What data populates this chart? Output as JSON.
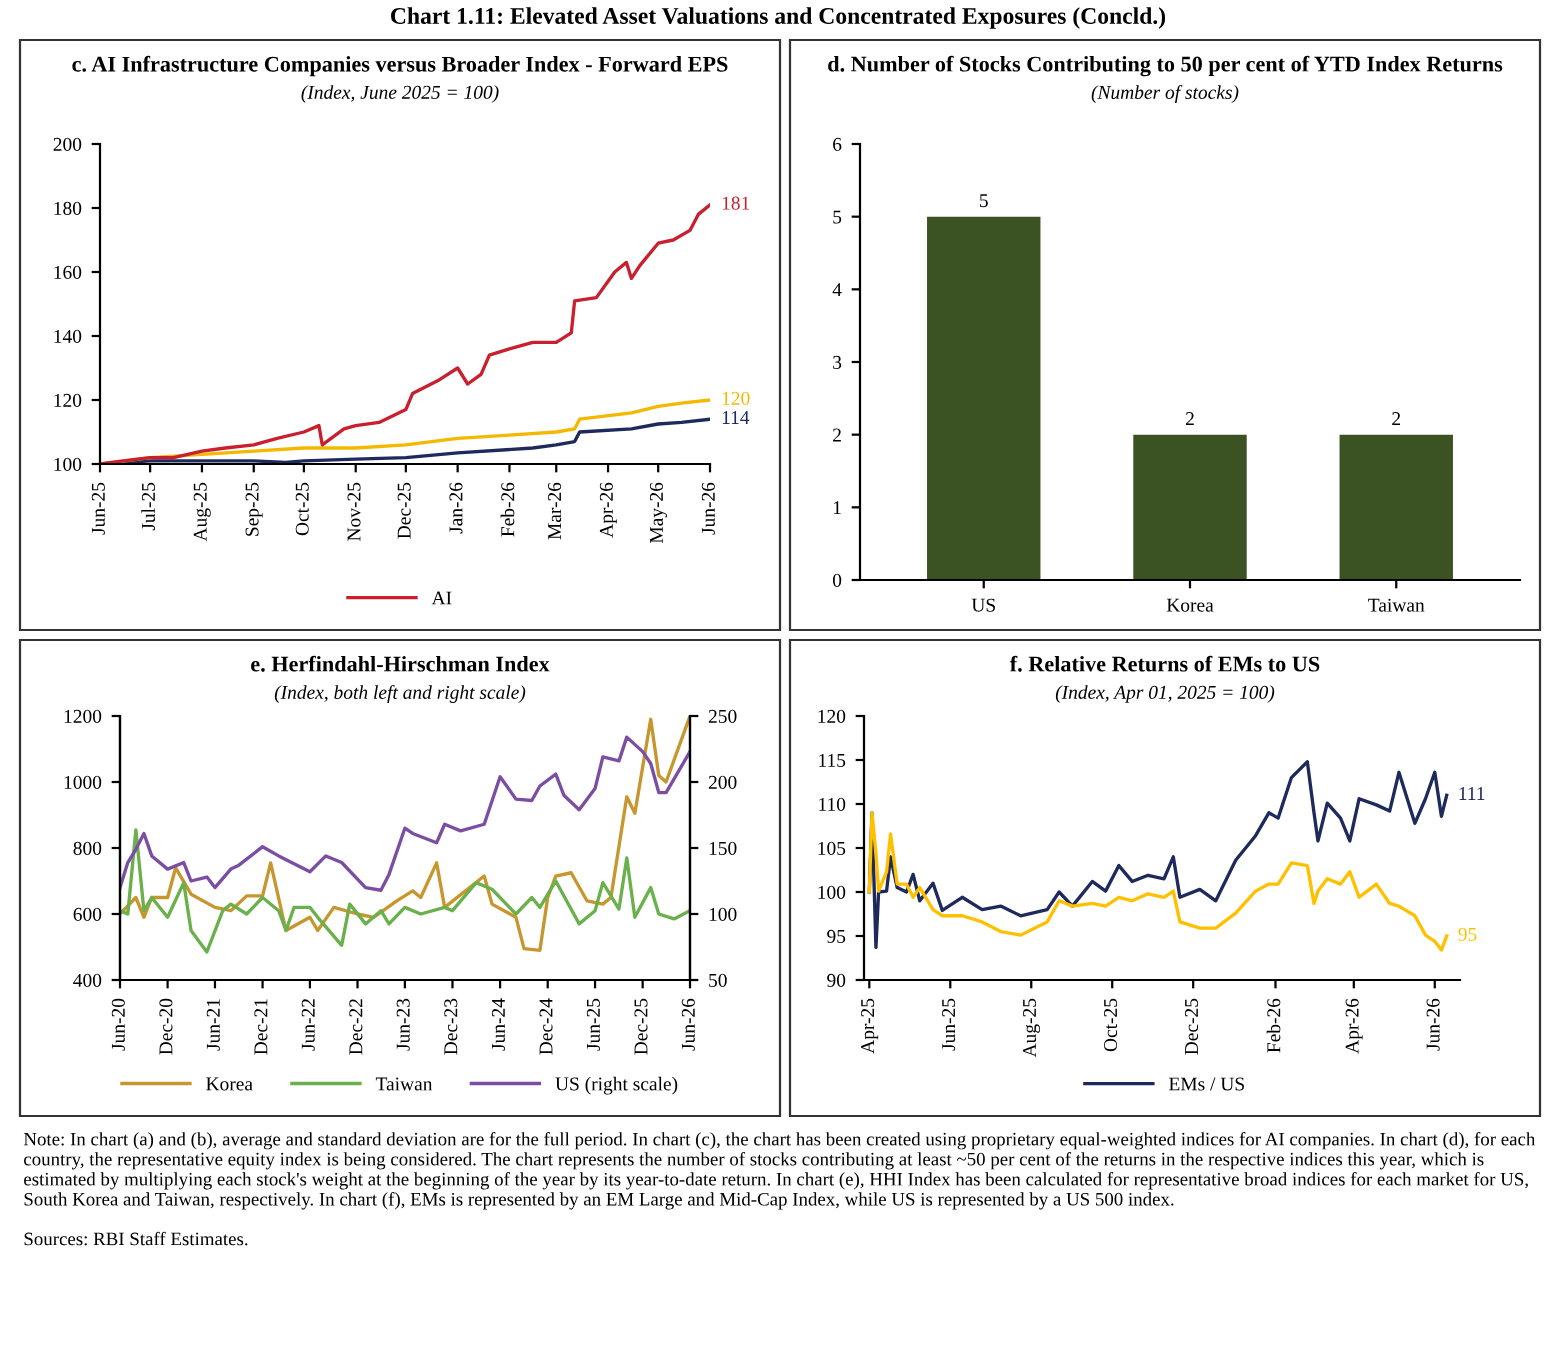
{
  "chart_data": [
    {
      "type": "other",
      "title": "Chart 1.11: Elevated Asset Valuations and Concentrated Exposures (Concld.)",
      "annotations": [
        "Note: In chart (a) and (b), average and standard deviation are for the full period. In chart (c), the chart has been created using proprietary equal-weighted indices for AI companies. In chart (d), for each country, the representative equity index is being considered. The chart represents the number of stocks contributing at least ~50 per cent of the returns in the respective indices this year, which is estimated by multiplying each stock's weight at the beginning of the year by its year-to-date return. In chart (e), HHI Index has been calculated for representative broad indices for each market for US, South Korea and Taiwan, respectively. In chart (f), EMs is represented by an EM Large and Mid-Cap Index, while US is represented by a US 500 index.",
        "Sources: RBI Staff Estimates."
      ]
    },
    {
      "type": "line",
      "title": "c. AI Infrastructure Companies versus Broader Index - Forward EPS",
      "subtitle": "(Index, June 2025 = 100)",
      "ylim": [
        100,
        200
      ],
      "yticks": [
        100,
        120,
        140,
        160,
        180,
        200
      ],
      "xlim": [
        "2025-06-01",
        "2026-06-01"
      ],
      "xticks": [
        {
          "value": "2025-06-01",
          "label": "Jun-25"
        },
        {
          "value": "2025-07-01",
          "label": "Jul-25"
        },
        {
          "value": "2025-08-01",
          "label": "Aug-25"
        },
        {
          "value": "2025-09-01",
          "label": "Sep-25"
        },
        {
          "value": "2025-10-01",
          "label": "Oct-25"
        },
        {
          "value": "2025-11-01",
          "label": "Nov-25"
        },
        {
          "value": "2025-12-01",
          "label": "Dec-25"
        },
        {
          "value": "2026-01-01",
          "label": "Jan-26"
        },
        {
          "value": "2026-02-01",
          "label": "Feb-26"
        },
        {
          "value": "2026-03-01",
          "label": "Mar-26"
        },
        {
          "value": "2026-04-01",
          "label": "Apr-26"
        },
        {
          "value": "2026-05-01",
          "label": "May-26"
        },
        {
          "value": "2026-06-01",
          "label": "Jun-26"
        }
      ],
      "legend": "bottom",
      "series": [
        {
          "color": "#1f2a5c",
          "x": [
            "2025-06-01",
            "2025-07-01",
            "2025-08-01",
            "2025-09-01",
            "2025-09-20",
            "2025-10-01",
            "2025-11-01",
            "2025-12-01",
            "2026-01-01",
            "2026-02-15",
            "2026-03-01",
            "2026-03-12",
            "2026-03-15",
            "2026-04-15",
            "2026-05-01",
            "2026-05-15",
            "2026-06-01"
          ],
          "values": [
            100,
            101,
            101,
            101,
            100.5,
            101,
            101.5,
            102,
            103.5,
            105,
            106,
            107,
            110,
            111,
            112.5,
            113,
            114
          ]
        },
        {
          "color": "#f5b800",
          "x": [
            "2025-06-01",
            "2025-07-01",
            "2025-08-01",
            "2025-09-01",
            "2025-10-01",
            "2025-11-01",
            "2025-12-01",
            "2026-01-01",
            "2026-02-01",
            "2026-03-01",
            "2026-03-12",
            "2026-03-15",
            "2026-04-15",
            "2026-05-01",
            "2026-05-15",
            "2026-06-01"
          ],
          "values": [
            100,
            102,
            103,
            104,
            105,
            105,
            106,
            108,
            109,
            110,
            111,
            114,
            116,
            118,
            119,
            120
          ]
        },
        {
          "name": "AI",
          "color": "#c8202f",
          "x": [
            "2025-06-01",
            "2025-06-15",
            "2025-07-01",
            "2025-07-15",
            "2025-08-01",
            "2025-08-15",
            "2025-09-01",
            "2025-09-15",
            "2025-10-01",
            "2025-10-10",
            "2025-10-12",
            "2025-10-25",
            "2025-11-01",
            "2025-11-15",
            "2025-12-01",
            "2025-12-05",
            "2025-12-20",
            "2026-01-01",
            "2026-01-07",
            "2026-01-15",
            "2026-01-20",
            "2026-02-01",
            "2026-02-15",
            "2026-03-01",
            "2026-03-10",
            "2026-03-12",
            "2026-03-25",
            "2026-04-05",
            "2026-04-12",
            "2026-04-15",
            "2026-04-20",
            "2026-05-01",
            "2026-05-10",
            "2026-05-20",
            "2026-05-25",
            "2026-06-01"
          ],
          "values": [
            100,
            101,
            102,
            102,
            104,
            105,
            106,
            108,
            110,
            112,
            106,
            111,
            112,
            113,
            117,
            122,
            126,
            130,
            125,
            128,
            134,
            136,
            138,
            138,
            141,
            151,
            152,
            160,
            163,
            158,
            162,
            169,
            170,
            173,
            178,
            181
          ]
        }
      ],
      "annotations": [
        {
          "text": "181",
          "x": "2026-06-01",
          "y": 181
        },
        {
          "text": "120",
          "x": "2026-06-01",
          "y": 120
        },
        {
          "text": "114",
          "x": "2026-06-01",
          "y": 114
        }
      ]
    },
    {
      "type": "bar",
      "title": "d. Number of Stocks Contributing to 50 per cent of YTD Index Returns",
      "subtitle": "(Number of stocks)",
      "categories": [
        "US",
        "Korea",
        "Taiwan"
      ],
      "values": [
        5,
        2,
        2
      ],
      "color": "#3b5323",
      "ylim": [
        0,
        6
      ],
      "yticks": [
        0,
        1,
        2,
        3,
        4,
        5,
        6
      ],
      "data_labels": true
    },
    {
      "type": "line",
      "title": "e. Herfindahl-Hirschman Index",
      "subtitle": "(Index, both left and right scale)",
      "ylim": [
        400,
        1200
      ],
      "yticks": [
        400,
        600,
        800,
        1000,
        1200
      ],
      "y2lim": [
        50,
        250
      ],
      "y2ticks": [
        50,
        100,
        150,
        200,
        250
      ],
      "xlim": [
        "2020-06",
        "2026-06"
      ],
      "xticks": [
        {
          "value": "2020-06",
          "label": "Jun-20"
        },
        {
          "value": "2020-12",
          "label": "Dec-20"
        },
        {
          "value": "2021-06",
          "label": "Jun-21"
        },
        {
          "value": "2021-12",
          "label": "Dec-21"
        },
        {
          "value": "2022-06",
          "label": "Jun-22"
        },
        {
          "value": "2022-12",
          "label": "Dec-22"
        },
        {
          "value": "2023-06",
          "label": "Jun-23"
        },
        {
          "value": "2023-12",
          "label": "Dec-23"
        },
        {
          "value": "2024-06",
          "label": "Jun-24"
        },
        {
          "value": "2024-12",
          "label": "Dec-24"
        },
        {
          "value": "2025-06",
          "label": "Jun-25"
        },
        {
          "value": "2025-12",
          "label": "Dec-25"
        },
        {
          "value": "2026-06",
          "label": "Jun-26"
        }
      ],
      "legend": "bottom",
      "series": [
        {
          "name": "Korea",
          "color": "#c8962e",
          "x": [
            "2020-06",
            "2020-08",
            "2020-09",
            "2020-10",
            "2020-12",
            "2021-01",
            "2021-03",
            "2021-06",
            "2021-08",
            "2021-10",
            "2021-12",
            "2022-01",
            "2022-03",
            "2022-06",
            "2022-07",
            "2022-09",
            "2022-12",
            "2023-02",
            "2023-05",
            "2023-07",
            "2023-08",
            "2023-10",
            "2023-11",
            "2024-04",
            "2024-05",
            "2024-08",
            "2024-09",
            "2024-11",
            "2024-12",
            "2025-01",
            "2025-03",
            "2025-05",
            "2025-07",
            "2025-08",
            "2025-10",
            "2025-11",
            "2026-01",
            "2026-02",
            "2026-03",
            "2026-06"
          ],
          "values": [
            600,
            650,
            590,
            650,
            650,
            740,
            660,
            620,
            610,
            655,
            655,
            755,
            550,
            590,
            550,
            620,
            600,
            590,
            640,
            670,
            650,
            755,
            620,
            715,
            630,
            590,
            495,
            490,
            650,
            715,
            725,
            640,
            630,
            650,
            955,
            905,
            1190,
            1020,
            1000,
            1200
          ]
        },
        {
          "name": "Taiwan",
          "color": "#6ab04c",
          "x": [
            "2020-06",
            "2020-07",
            "2020-08",
            "2020-09",
            "2020-10",
            "2020-12",
            "2021-02",
            "2021-03",
            "2021-05",
            "2021-07",
            "2021-08",
            "2021-10",
            "2021-12",
            "2022-02",
            "2022-03",
            "2022-04",
            "2022-06",
            "2022-07",
            "2022-10",
            "2022-11",
            "2023-01",
            "2023-03",
            "2023-04",
            "2023-06",
            "2023-08",
            "2023-11",
            "2023-12",
            "2024-03",
            "2024-05",
            "2024-08",
            "2024-10",
            "2024-11",
            "2025-01",
            "2025-04",
            "2025-06",
            "2025-07",
            "2025-09",
            "2025-10",
            "2025-11",
            "2026-01",
            "2026-02",
            "2026-04",
            "2026-06"
          ],
          "values": [
            610,
            600,
            855,
            610,
            650,
            590,
            695,
            550,
            485,
            610,
            630,
            600,
            650,
            610,
            550,
            620,
            620,
            590,
            505,
            630,
            570,
            610,
            570,
            620,
            600,
            620,
            610,
            695,
            675,
            600,
            650,
            620,
            700,
            570,
            610,
            695,
            615,
            770,
            590,
            680,
            600,
            585,
            610
          ]
        },
        {
          "name": "US (right scale)",
          "color": "#7b4ea3",
          "axis": "y2",
          "x": [
            "2020-06",
            "2020-07",
            "2020-08",
            "2020-09",
            "2020-10",
            "2020-12",
            "2021-02",
            "2021-03",
            "2021-05",
            "2021-06",
            "2021-08",
            "2021-09",
            "2021-12",
            "2022-02",
            "2022-06",
            "2022-08",
            "2022-10",
            "2023-01",
            "2023-03",
            "2023-04",
            "2023-06",
            "2023-07",
            "2023-10",
            "2023-11",
            "2024-01",
            "2024-04",
            "2024-06",
            "2024-08",
            "2024-10",
            "2024-11",
            "2025-01",
            "2025-02",
            "2025-04",
            "2025-06",
            "2025-07",
            "2025-09",
            "2025-10",
            "2025-12",
            "2026-01",
            "2026-02",
            "2026-03",
            "2026-06"
          ],
          "values": [
            120,
            139,
            149,
            161,
            144,
            134,
            139,
            125,
            128,
            120,
            134,
            137,
            151,
            144,
            132,
            144,
            139,
            120,
            118,
            130,
            165,
            161,
            154,
            168,
            163,
            168,
            204,
            187,
            186,
            197,
            206,
            190,
            179,
            195,
            219,
            216,
            234,
            223,
            214,
            192,
            192,
            223
          ]
        }
      ]
    },
    {
      "type": "line",
      "title": "f. Relative Returns of EMs to US",
      "subtitle": "(Index, Apr 01, 2025 = 100)",
      "ylim": [
        90,
        120
      ],
      "yticks": [
        90,
        95,
        100,
        105,
        110,
        115,
        120
      ],
      "xlim": [
        "2025-03-28",
        "2026-06-20"
      ],
      "xticks": [
        {
          "value": "2025-04-01",
          "label": "Apr-25"
        },
        {
          "value": "2025-06-01",
          "label": "Jun-25"
        },
        {
          "value": "2025-08-01",
          "label": "Aug-25"
        },
        {
          "value": "2025-10-01",
          "label": "Oct-25"
        },
        {
          "value": "2025-12-01",
          "label": "Dec-25"
        },
        {
          "value": "2026-02-01",
          "label": "Feb-26"
        },
        {
          "value": "2026-04-01",
          "label": "Apr-26"
        },
        {
          "value": "2026-06-01",
          "label": "Jun-26"
        }
      ],
      "legend": "bottom",
      "x": [
        "2025-04-01",
        "2025-04-03",
        "2025-04-06",
        "2025-04-08",
        "2025-04-14",
        "2025-04-17",
        "2025-04-22",
        "2025-04-29",
        "2025-05-04",
        "2025-05-09",
        "2025-05-19",
        "2025-05-26",
        "2025-06-10",
        "2025-06-25",
        "2025-07-09",
        "2025-07-24",
        "2025-08-13",
        "2025-08-22",
        "2025-09-01",
        "2025-09-16",
        "2025-09-26",
        "2025-10-06",
        "2025-10-16",
        "2025-10-28",
        "2025-11-09",
        "2025-11-16",
        "2025-11-21",
        "2025-12-06",
        "2025-12-18",
        "2026-01-02",
        "2026-01-17",
        "2026-01-27",
        "2026-02-03",
        "2026-02-13",
        "2026-02-25",
        "2026-03-02",
        "2026-03-05",
        "2026-03-12",
        "2026-03-22",
        "2026-03-29",
        "2026-04-05",
        "2026-04-18",
        "2026-04-28",
        "2026-05-05",
        "2026-05-17",
        "2026-05-25",
        "2026-06-01",
        "2026-06-06",
        "2026-06-10"
      ],
      "series": [
        {
          "name": "EMs / US",
          "color": "#1f2a5c",
          "values": [
            100,
            109,
            93.7,
            100,
            100.1,
            104,
            100.5,
            100,
            102,
            99,
            101,
            97.9,
            99.4,
            98,
            98.4,
            97.3,
            98,
            100,
            98.4,
            101.2,
            100.1,
            103,
            101.2,
            101.9,
            101.5,
            104,
            99.4,
            100.3,
            99,
            103.6,
            106.4,
            109,
            108.4,
            113,
            114.8,
            109,
            105.8,
            110.1,
            108.4,
            105.8,
            110.6,
            109.9,
            109.2,
            113.6,
            107.8,
            110.6,
            113.6,
            108.6,
            111
          ]
        },
        {
          "color": "#ffc000",
          "values": [
            100,
            109,
            104.4,
            100.1,
            102.3,
            106.6,
            100.9,
            100.9,
            99.4,
            100.5,
            98,
            97.3,
            97.3,
            96.6,
            95.5,
            95.1,
            96.6,
            99,
            98.4,
            98.7,
            98.4,
            99.4,
            99,
            99.8,
            99.4,
            100.1,
            96.6,
            95.9,
            95.9,
            97.6,
            100.1,
            100.9,
            100.9,
            103.3,
            103,
            98.7,
            100.1,
            101.5,
            100.9,
            102.3,
            99.4,
            100.9,
            98.7,
            98.4,
            97.3,
            95.1,
            94.4,
            93.4,
            95
          ]
        }
      ],
      "annotations": [
        {
          "text": "111",
          "x": "2026-06-10",
          "y": 111
        },
        {
          "text": "95",
          "x": "2026-06-10",
          "y": 95
        }
      ]
    }
  ]
}
